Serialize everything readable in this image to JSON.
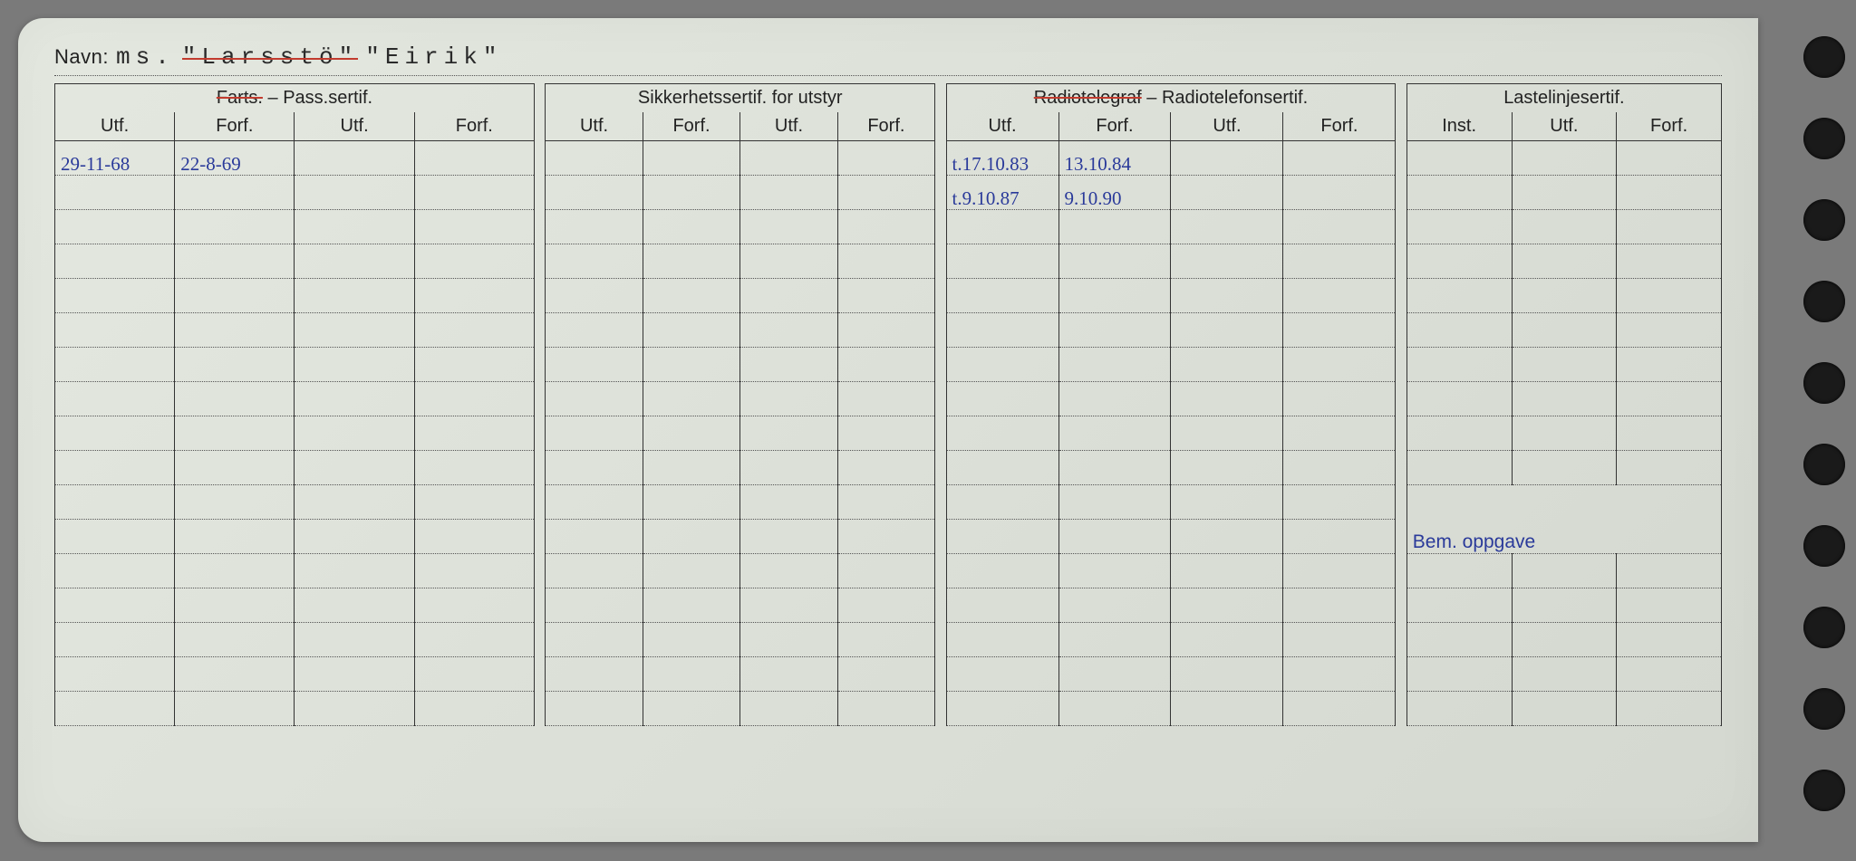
{
  "navn": {
    "label": "Navn:",
    "prefix": "ms.",
    "struck_name": "\"Larsstö\"",
    "current_name": "\"Eirik\""
  },
  "groups": {
    "pass": {
      "title_struck": "Farts.",
      "title_rest": " – Pass.sertif.",
      "cols": [
        "Utf.",
        "Forf.",
        "Utf.",
        "Forf."
      ]
    },
    "sikker": {
      "title": "Sikkerhetssertif. for utstyr",
      "cols": [
        "Utf.",
        "Forf.",
        "Utf.",
        "Forf."
      ]
    },
    "radio": {
      "title_struck": "Radiotelegraf",
      "title_rest": " – Radiotelefonsertif.",
      "cols": [
        "Utf.",
        "Forf.",
        "Utf.",
        "Forf."
      ]
    },
    "laste": {
      "title": "Lastelinjesertif.",
      "cols": [
        "Inst.",
        "Utf.",
        "Forf."
      ]
    }
  },
  "rows": [
    {
      "c0": "29-11-68",
      "c1": "22-8-69",
      "c2": "",
      "c3": "",
      "c4": "",
      "c5": "",
      "c6": "",
      "c7": "",
      "c8": "t.17.10.83",
      "c9": "13.10.84",
      "c10": "",
      "c11": "",
      "c12": "",
      "c13": "",
      "c14": ""
    },
    {
      "c0": "",
      "c1": "",
      "c2": "",
      "c3": "",
      "c4": "",
      "c5": "",
      "c6": "",
      "c7": "",
      "c8": "t.9.10.87",
      "c9": "9.10.90",
      "c10": "",
      "c11": "",
      "c12": "",
      "c13": "",
      "c14": ""
    },
    {},
    {},
    {},
    {},
    {},
    {},
    {},
    {},
    {},
    {},
    {},
    {},
    {},
    {},
    {}
  ],
  "bem_label": "Bem. oppgave",
  "colors": {
    "paper": "#e2e6de",
    "ink": "#222222",
    "pen": "#2a3a9a",
    "red": "#c23b2e",
    "dots": "#555555"
  }
}
